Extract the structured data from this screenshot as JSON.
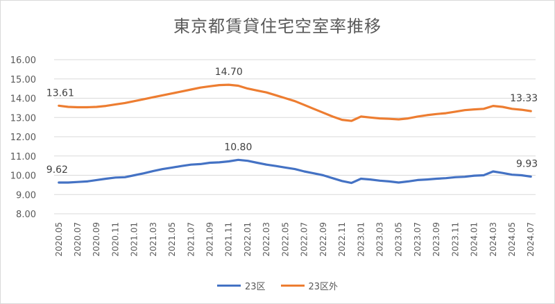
{
  "chart_data": {
    "type": "line",
    "title": "東京都賃貸住宅空室率推移",
    "ylim": [
      8.0,
      16.0
    ],
    "yticks": [
      "16.00",
      "15.00",
      "14.00",
      "13.00",
      "12.00",
      "11.00",
      "10.00",
      "9.00",
      "8.00"
    ],
    "grid": true,
    "legend_position": "bottom",
    "x": [
      "2020.05",
      "2020.06",
      "2020.07",
      "2020.08",
      "2020.09",
      "2020.10",
      "2020.11",
      "2020.12",
      "2021.01",
      "2021.02",
      "2021.03",
      "2021.04",
      "2021.05",
      "2021.06",
      "2021.07",
      "2021.08",
      "2021.09",
      "2021.10",
      "2021.11",
      "2021.12",
      "2022.01",
      "2022.02",
      "2022.03",
      "2022.04",
      "2022.05",
      "2022.06",
      "2022.07",
      "2022.08",
      "2022.09",
      "2022.10",
      "2022.11",
      "2022.12",
      "2023.01",
      "2023.02",
      "2023.03",
      "2023.04",
      "2023.05",
      "2023.06",
      "2023.07",
      "2023.08",
      "2023.09",
      "2023.10",
      "2023.11",
      "2023.12",
      "2024.01",
      "2024.02",
      "2024.03",
      "2024.04",
      "2024.05",
      "2024.06",
      "2024.07"
    ],
    "xtick_labels": [
      "2020.05",
      "2020.07",
      "2020.09",
      "2020.11",
      "2021.01",
      "2021.03",
      "2021.05",
      "2021.07",
      "2021.09",
      "2021.11",
      "2022.01",
      "2022.03",
      "2022.05",
      "2022.07",
      "2022.09",
      "2022.11",
      "2023.01",
      "2023.03",
      "2023.05",
      "2023.07",
      "2023.09",
      "2023.11",
      "2024.01",
      "2024.03",
      "2024.05",
      "2024.07"
    ],
    "series": [
      {
        "name": "23区",
        "color": "#4472C4",
        "values": [
          9.62,
          9.62,
          9.65,
          9.68,
          9.75,
          9.82,
          9.88,
          9.9,
          10.0,
          10.1,
          10.22,
          10.32,
          10.4,
          10.48,
          10.55,
          10.58,
          10.65,
          10.67,
          10.72,
          10.8,
          10.75,
          10.65,
          10.55,
          10.48,
          10.4,
          10.32,
          10.2,
          10.1,
          10.0,
          9.85,
          9.7,
          9.6,
          9.82,
          9.78,
          9.72,
          9.68,
          9.62,
          9.68,
          9.75,
          9.78,
          9.82,
          9.85,
          9.9,
          9.92,
          9.98,
          10.0,
          10.2,
          10.12,
          10.03,
          10.0,
          9.93
        ]
      },
      {
        "name": "23区外",
        "color": "#ED7D31",
        "values": [
          13.61,
          13.55,
          13.53,
          13.53,
          13.55,
          13.6,
          13.68,
          13.75,
          13.85,
          13.95,
          14.05,
          14.15,
          14.25,
          14.35,
          14.45,
          14.55,
          14.62,
          14.68,
          14.7,
          14.65,
          14.5,
          14.4,
          14.3,
          14.15,
          14.0,
          13.85,
          13.65,
          13.45,
          13.25,
          13.05,
          12.88,
          12.82,
          13.05,
          13.0,
          12.95,
          12.93,
          12.9,
          12.95,
          13.05,
          13.12,
          13.18,
          13.22,
          13.3,
          13.38,
          13.42,
          13.45,
          13.6,
          13.55,
          13.45,
          13.4,
          13.33
        ]
      }
    ],
    "annotations": [
      {
        "series": 1,
        "index": 0,
        "text": "13.61"
      },
      {
        "series": 1,
        "index": 18,
        "text": "14.70"
      },
      {
        "series": 1,
        "index": 50,
        "text": "13.33"
      },
      {
        "series": 0,
        "index": 0,
        "text": "9.62"
      },
      {
        "series": 0,
        "index": 19,
        "text": "10.80"
      },
      {
        "series": 0,
        "index": 50,
        "text": "9.93"
      }
    ]
  }
}
